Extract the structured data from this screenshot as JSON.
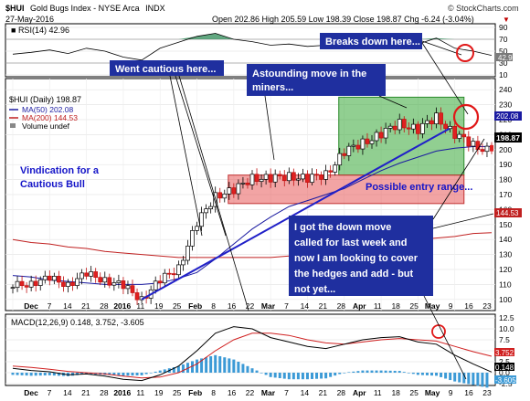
{
  "header": {
    "symbol": "$HUI",
    "name": "Gold Bugs Index - NYSE Arca",
    "exchange": "INDX",
    "date": "27-May-2016",
    "ohlc": "Open 202.86  High 205.59  Low 198.39  Close 198.87  Chg -6.24 (-3.04%)",
    "chg_marker": "▼",
    "watermark": "© StockCharts.com"
  },
  "rsi_panel": {
    "label": "RSI(14) 42.96",
    "ticks": [
      "90",
      "70",
      "50",
      "30",
      "10"
    ],
    "current": "42.96"
  },
  "price_panel": {
    "legend": {
      "title": "$HUI (Daily) 198.87",
      "ma50": "MA(50) 202.08",
      "ma200": "MA(200) 144.53",
      "volume": "Volume undef"
    },
    "ticks": [
      "240",
      "230",
      "220",
      "210",
      "200",
      "190",
      "180",
      "170",
      "160",
      "150",
      "140",
      "130",
      "120",
      "110",
      "100"
    ],
    "current_price_label": "198.87",
    "ma50_label": "202.08",
    "ma200_label": "144.53"
  },
  "macd_panel": {
    "label": "MACD(12,26,9) 0.148, 3.752, -3.605",
    "ticks": [
      "12.5",
      "10.0",
      "7.5",
      "5.0",
      "2.5",
      "0.0",
      "-2.5"
    ],
    "value_labels": [
      "3.752",
      "0.148",
      "-3.605"
    ]
  },
  "annotations": {
    "cautious": "Went cautious here...",
    "astounding_1": "Astounding move in the",
    "astounding_2": "miners...",
    "breaks": "Breaks down here...",
    "vindication_1": "Vindication for a",
    "vindication_2": "Cautious Bull",
    "entry": "Possible entry range...",
    "cover_1": "I got the down move",
    "cover_2": "called for last week and",
    "cover_3": "now I am looking to cover",
    "cover_4": "the hedges and add - but",
    "cover_5": "not yet..."
  },
  "x_axis": {
    "labels": [
      "Dec",
      "7",
      "14",
      "21",
      "28",
      "2016",
      "11",
      "19",
      "25",
      "Feb",
      "8",
      "16",
      "22",
      "Mar",
      "7",
      "14",
      "21",
      "28",
      "Apr",
      "11",
      "18",
      "25",
      "May",
      "9",
      "16",
      "23"
    ]
  },
  "colors": {
    "ma50": "#1a1aa0",
    "ma200": "#c02020",
    "trendline": "#2020c8",
    "annotation_bg": "#1f2f9f",
    "green_zone": "#36a836",
    "red_zone": "#e85a5a",
    "candle_up": "#ffffff",
    "candle_down": "#e02020",
    "histogram": "#3c9ad6",
    "circle": "#e01818"
  },
  "chart_data": {
    "type": "line",
    "title": "$HUI Gold Bugs Index - NYSE Arca INDX",
    "x": [
      "Dec 1",
      "Dec 7",
      "Dec 14",
      "Dec 21",
      "Dec 28",
      "Jan 4",
      "Jan 11",
      "Jan 19",
      "Jan 25",
      "Feb 1",
      "Feb 8",
      "Feb 16",
      "Feb 22",
      "Mar 1",
      "Mar 7",
      "Mar 14",
      "Mar 21",
      "Mar 28",
      "Apr 4",
      "Apr 11",
      "Apr 18",
      "Apr 25",
      "May 2",
      "May 9",
      "May 16",
      "May 23",
      "May 27"
    ],
    "series": [
      {
        "name": "$HUI (Daily)",
        "values": [
          108,
          112,
          113,
          111,
          116,
          114,
          108,
          101,
          112,
          122,
          150,
          170,
          172,
          182,
          180,
          183,
          180,
          184,
          198,
          205,
          210,
          218,
          213,
          222,
          210,
          203,
          198.87
        ]
      },
      {
        "name": "MA(50)",
        "values": [
          116,
          115,
          113,
          112,
          111,
          110,
          110,
          110,
          111,
          114,
          118,
          127,
          137,
          147,
          155,
          162,
          166,
          170,
          174,
          180,
          186,
          191,
          195,
          199,
          201,
          202,
          202.08
        ]
      },
      {
        "name": "MA(200)",
        "values": [
          140,
          138,
          137,
          135,
          134,
          132,
          131,
          130,
          129,
          128,
          128,
          128,
          128,
          128,
          128,
          129,
          130,
          131,
          132,
          134,
          136,
          138,
          140,
          141,
          142,
          144,
          144.53
        ]
      }
    ],
    "ylim": [
      95,
      245
    ],
    "rsi": {
      "name": "RSI(14)",
      "values": [
        45,
        48,
        52,
        46,
        55,
        50,
        40,
        35,
        55,
        65,
        75,
        80,
        70,
        66,
        60,
        62,
        58,
        60,
        68,
        68,
        70,
        72,
        62,
        72,
        55,
        50,
        42.96
      ],
      "ylim": [
        10,
        90
      ]
    },
    "macd": {
      "name": "MACD(12,26,9)",
      "macd": 0.148,
      "signal": 3.752,
      "histogram": -3.605,
      "ylim": [
        -2.5,
        12.5
      ]
    },
    "zones": [
      {
        "label": "Astounding move in the miners...",
        "y": [
          183,
          235
        ],
        "color": "green"
      },
      {
        "label": "Possible entry range...",
        "y": [
          164,
          183
        ],
        "color": "red"
      }
    ],
    "grid": true
  }
}
